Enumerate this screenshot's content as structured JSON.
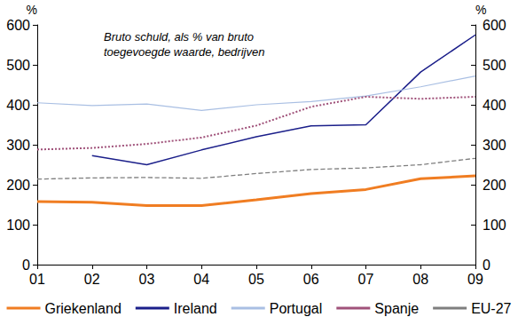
{
  "chart_data": {
    "type": "line",
    "annotation": "Bruto schuld, als % van bruto\ntoegevoegde waarde, bedrijven",
    "ylabel": "%",
    "y2label": "%",
    "categories": [
      "01",
      "02",
      "03",
      "04",
      "05",
      "06",
      "07",
      "08",
      "09"
    ],
    "series": [
      {
        "name": "Griekenland",
        "color": "#f07d22",
        "line_style": "solid",
        "values": [
          158,
          156,
          148,
          148,
          162,
          178,
          188,
          215,
          222
        ]
      },
      {
        "name": "Ireland",
        "color": "#1b1f8a",
        "line_style": "solid",
        "values": [
          null,
          273,
          250,
          287,
          320,
          347,
          350,
          482,
          575
        ]
      },
      {
        "name": "Portugal",
        "color": "#a9bfe3",
        "line_style": "solid",
        "values": [
          405,
          398,
          402,
          386,
          400,
          408,
          422,
          445,
          472
        ]
      },
      {
        "name": "Spanje",
        "color": "#a0527a",
        "line_style": "dotted",
        "values": [
          288,
          292,
          302,
          318,
          348,
          395,
          420,
          415,
          420
        ]
      },
      {
        "name": "EU-27",
        "color": "#7f7f7f",
        "line_style": "dashed",
        "values": [
          214,
          217,
          218,
          216,
          228,
          238,
          242,
          250,
          266
        ]
      }
    ],
    "ylim": [
      0,
      600
    ],
    "yticks": [
      0,
      100,
      200,
      300,
      400,
      500,
      600
    ],
    "y2lim": [
      0,
      600
    ],
    "y2ticks": [
      0,
      100,
      200,
      300,
      400,
      500,
      600
    ],
    "grid": false,
    "legend": "bottom"
  }
}
